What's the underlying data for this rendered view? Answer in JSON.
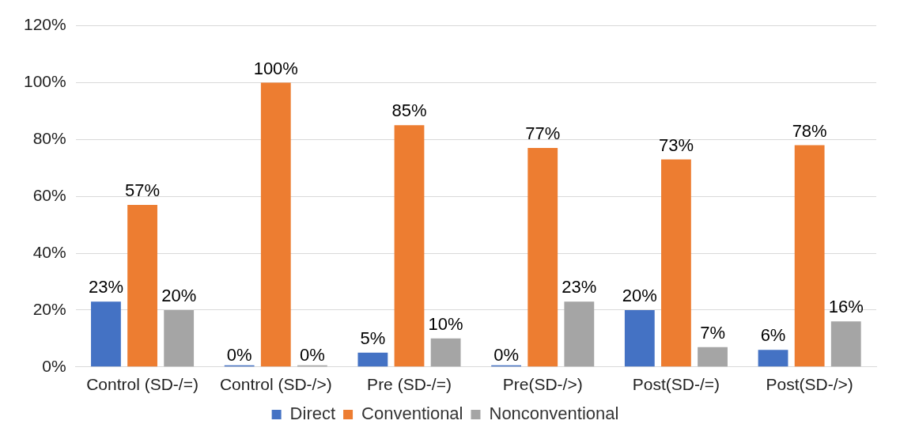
{
  "chart_data": {
    "type": "bar",
    "categories": [
      "Control (SD-/=)",
      "Control (SD-/>)",
      "Pre (SD-/=)",
      "Pre(SD-/>)",
      "Post(SD-/=)",
      "Post(SD-/>)"
    ],
    "series": [
      {
        "name": "Direct",
        "color": "#4472c4",
        "values": [
          23,
          0,
          5,
          0,
          20,
          6
        ],
        "value_labels": [
          "23%",
          "0%",
          "5%",
          "0%",
          "20%",
          "6%"
        ]
      },
      {
        "name": "Conventional",
        "color": "#ed7d31",
        "values": [
          57,
          100,
          85,
          77,
          73,
          78
        ],
        "value_labels": [
          "57%",
          "100%",
          "85%",
          "77%",
          "73%",
          "78%"
        ]
      },
      {
        "name": "Nonconventional",
        "color": "#a5a5a5",
        "values": [
          20,
          0,
          10,
          23,
          7,
          16
        ],
        "value_labels": [
          "20%",
          "0%",
          "10%",
          "23%",
          "7%",
          "16%"
        ]
      }
    ],
    "ylim": [
      0,
      120
    ],
    "yticks": [
      {
        "value": 0,
        "label": "0%"
      },
      {
        "value": 20,
        "label": "20%"
      },
      {
        "value": 40,
        "label": "40%"
      },
      {
        "value": 60,
        "label": "60%"
      },
      {
        "value": 80,
        "label": "80%"
      },
      {
        "value": 100,
        "label": "100%"
      },
      {
        "value": 120,
        "label": "120%"
      }
    ],
    "grid": "y",
    "legend": "bottom"
  }
}
